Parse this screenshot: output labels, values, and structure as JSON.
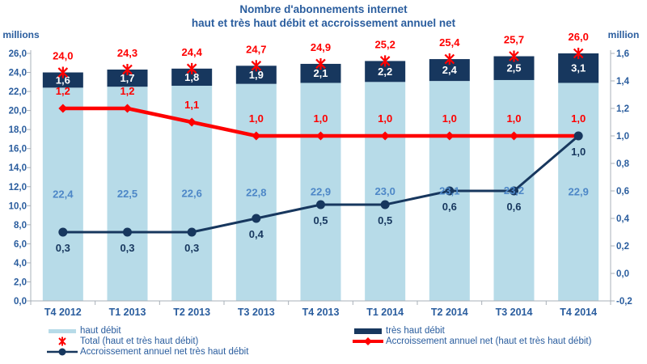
{
  "chart_data": {
    "type": "bar+line combo (stacked bars with point markers, dual value axes)",
    "title_line1": "Nombre d'abonnements internet",
    "title_line2": "haut et très haut débit et accroissement annuel net",
    "categories": [
      "T4 2012",
      "T1 2013",
      "T2 2013",
      "T3 2013",
      "T4 2013",
      "T1 2014",
      "T2 2014",
      "T3 2014",
      "T4 2014"
    ],
    "axes": {
      "left": {
        "label": "millions",
        "min": 0,
        "max": 26,
        "step": 2,
        "ticks": [
          "0,0",
          "2,0",
          "4,0",
          "6,0",
          "8,0",
          "10,0",
          "12,0",
          "14,0",
          "16,0",
          "18,0",
          "20,0",
          "22,0",
          "24,0",
          "26,0"
        ]
      },
      "right": {
        "label": "million",
        "min": -0.2,
        "max": 1.6,
        "step": 0.2,
        "ticks": [
          "-0,2",
          "0,0",
          "0,2",
          "0,4",
          "0,6",
          "0,8",
          "1,0",
          "1,2",
          "1,4",
          "1,6"
        ]
      }
    },
    "series": [
      {
        "name": "haut débit",
        "type": "bar",
        "axis": "left",
        "color": "#b7dbe8",
        "label_color": "#4d87c7",
        "values": [
          22.4,
          22.5,
          22.6,
          22.8,
          22.9,
          23.0,
          23.1,
          23.2,
          22.9
        ],
        "labels": [
          "22,4",
          "22,5",
          "22,6",
          "22,8",
          "22,9",
          "23,0",
          "23,1",
          "23,2",
          "22,9"
        ]
      },
      {
        "name": "très haut débit",
        "type": "bar",
        "axis": "left",
        "color": "#17375e",
        "label_color": "#ffffff",
        "values": [
          1.6,
          1.7,
          1.8,
          1.9,
          2.1,
          2.2,
          2.4,
          2.5,
          3.1
        ],
        "labels": [
          "1,6",
          "1,7",
          "1,8",
          "1,9",
          "2,1",
          "2,2",
          "2,4",
          "2,5",
          "3,1"
        ]
      },
      {
        "name": "Total (haut et très haut débit)",
        "type": "point",
        "marker": "x-star",
        "axis": "left",
        "color": "#fe0000",
        "label_color": "#fe0000",
        "values": [
          24.0,
          24.3,
          24.4,
          24.7,
          24.9,
          25.2,
          25.4,
          25.7,
          26.0
        ],
        "labels": [
          "24,0",
          "24,3",
          "24,4",
          "24,7",
          "24,9",
          "25,2",
          "25,4",
          "25,7",
          "26,0"
        ]
      },
      {
        "name": "Accroissement annuel net (haut et très haut débit)",
        "type": "line",
        "marker": "diamond",
        "axis": "right",
        "color": "#fe0000",
        "label_color": "#fe0000",
        "values": [
          1.2,
          1.2,
          1.1,
          1.0,
          1.0,
          1.0,
          1.0,
          1.0,
          1.0
        ],
        "labels": [
          "1,2",
          "1,2",
          "1,1",
          "1,0",
          "1,0",
          "1,0",
          "1,0",
          "1,0",
          "1,0"
        ]
      },
      {
        "name": "Accroissement annuel net très haut débit",
        "type": "line",
        "marker": "circle",
        "axis": "right",
        "color": "#17375e",
        "label_color": "#17375e",
        "values": [
          0.3,
          0.3,
          0.3,
          0.4,
          0.5,
          0.5,
          0.6,
          0.6,
          1.0
        ],
        "labels": [
          "0,3",
          "0,3",
          "0,3",
          "0,4",
          "0,5",
          "0,5",
          "0,6",
          "0,6",
          "1,0"
        ]
      }
    ],
    "legend_position": "bottom, two columns"
  },
  "palette": {
    "title_text": "#2a5d9e",
    "axis_text": "#2a5d9e",
    "axis_line": "#a9b0b8",
    "bar_light_blue": "#b7dbe8",
    "bar_navy": "#17375e",
    "line_red": "#fe0000"
  }
}
